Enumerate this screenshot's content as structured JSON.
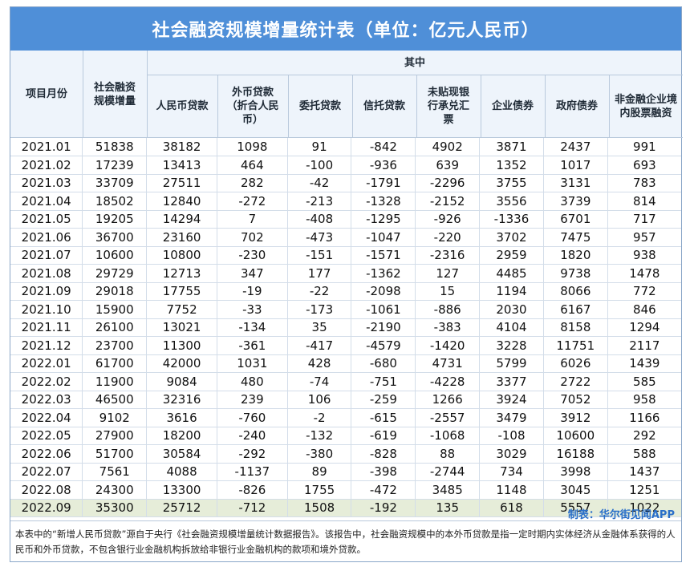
{
  "title": "社会融资规模增量统计表（单位：亿元人民币）",
  "headers": {
    "month": "项目月份",
    "total": "社会融资规模增量",
    "group": "其中",
    "cols": [
      "人民币贷款",
      "外币贷款（折合人民币）",
      "委托贷款",
      "信托贷款",
      "未贴现银行承兑汇票",
      "企业债券",
      "政府债券",
      "非金融企业境内股票融资"
    ]
  },
  "rows": [
    [
      "2021.01",
      "51838",
      "38182",
      "1098",
      "91",
      "-842",
      "4902",
      "3871",
      "2437",
      "991"
    ],
    [
      "2021.02",
      "17239",
      "13413",
      "464",
      "-100",
      "-936",
      "639",
      "1352",
      "1017",
      "693"
    ],
    [
      "2021.03",
      "33709",
      "27511",
      "282",
      "-42",
      "-1791",
      "-2296",
      "3755",
      "3131",
      "783"
    ],
    [
      "2021.04",
      "18502",
      "12840",
      "-272",
      "-213",
      "-1328",
      "-2152",
      "3556",
      "3739",
      "814"
    ],
    [
      "2021.05",
      "19205",
      "14294",
      "7",
      "-408",
      "-1295",
      "-926",
      "-1336",
      "6701",
      "717"
    ],
    [
      "2021.06",
      "36700",
      "23160",
      "702",
      "-473",
      "-1047",
      "-220",
      "3702",
      "7475",
      "957"
    ],
    [
      "2021.07",
      "10600",
      "10800",
      "-230",
      "-151",
      "-1571",
      "-2316",
      "2959",
      "1820",
      "938"
    ],
    [
      "2021.08",
      "29729",
      "12713",
      "347",
      "177",
      "-1362",
      "127",
      "4485",
      "9738",
      "1478"
    ],
    [
      "2021.09",
      "29018",
      "17755",
      "-19",
      "-22",
      "-2098",
      "15",
      "1194",
      "8066",
      "772"
    ],
    [
      "2021.10",
      "15900",
      "7752",
      "-33",
      "-173",
      "-1061",
      "-886",
      "2030",
      "6167",
      "846"
    ],
    [
      "2021.11",
      "26100",
      "13021",
      "-134",
      "35",
      "-2190",
      "-383",
      "4104",
      "8158",
      "1294"
    ],
    [
      "2021.12",
      "23700",
      "11300",
      "-361",
      "-417",
      "-4579",
      "-1420",
      "3228",
      "11751",
      "2117"
    ],
    [
      "2022.01",
      "61700",
      "42000",
      "1031",
      "428",
      "-680",
      "4731",
      "5799",
      "6026",
      "1439"
    ],
    [
      "2022.02",
      "11900",
      "9084",
      "480",
      "-74",
      "-751",
      "-4228",
      "3377",
      "2722",
      "585"
    ],
    [
      "2022.03",
      "46500",
      "32316",
      "239",
      "106",
      "-259",
      "1266",
      "3924",
      "7052",
      "958"
    ],
    [
      "2022.04",
      "9102",
      "3616",
      "-760",
      "-2",
      "-615",
      "-2557",
      "3479",
      "3912",
      "1166"
    ],
    [
      "2022.05",
      "27900",
      "18200",
      "-240",
      "-132",
      "-619",
      "-1068",
      "-108",
      "10600",
      "292"
    ],
    [
      "2022.06",
      "51700",
      "30584",
      "-292",
      "-380",
      "-828",
      "88",
      "3029",
      "16188",
      "588"
    ],
    [
      "2022.07",
      "7561",
      "4088",
      "-1137",
      "89",
      "-398",
      "-2744",
      "734",
      "3998",
      "1437"
    ],
    [
      "2022.08",
      "24300",
      "13300",
      "-826",
      "1755",
      "-472",
      "3485",
      "1148",
      "3045",
      "1251"
    ],
    [
      "2022.09",
      "35300",
      "25712",
      "-712",
      "1508",
      "-192",
      "135",
      "618",
      "5557",
      "1022"
    ]
  ],
  "credit": "制表：华尔街见闻APP",
  "note": "本表中的“新增人民币贷款”源自于央行《社会融资规模增量统计数据报告》。该报告中，社会融资规模中的本外币贷款是指一定时期内实体经济从金融体系获得的人民币和外币贷款，不包含银行业金融机构拆放给非银行业金融机构的款项和境外贷款。",
  "colors": {
    "title_bg": "#4f8fd8",
    "header_bg": "#eef4fb",
    "last_row_bg": "#e6edd9",
    "credit": "#2a6fc9"
  }
}
